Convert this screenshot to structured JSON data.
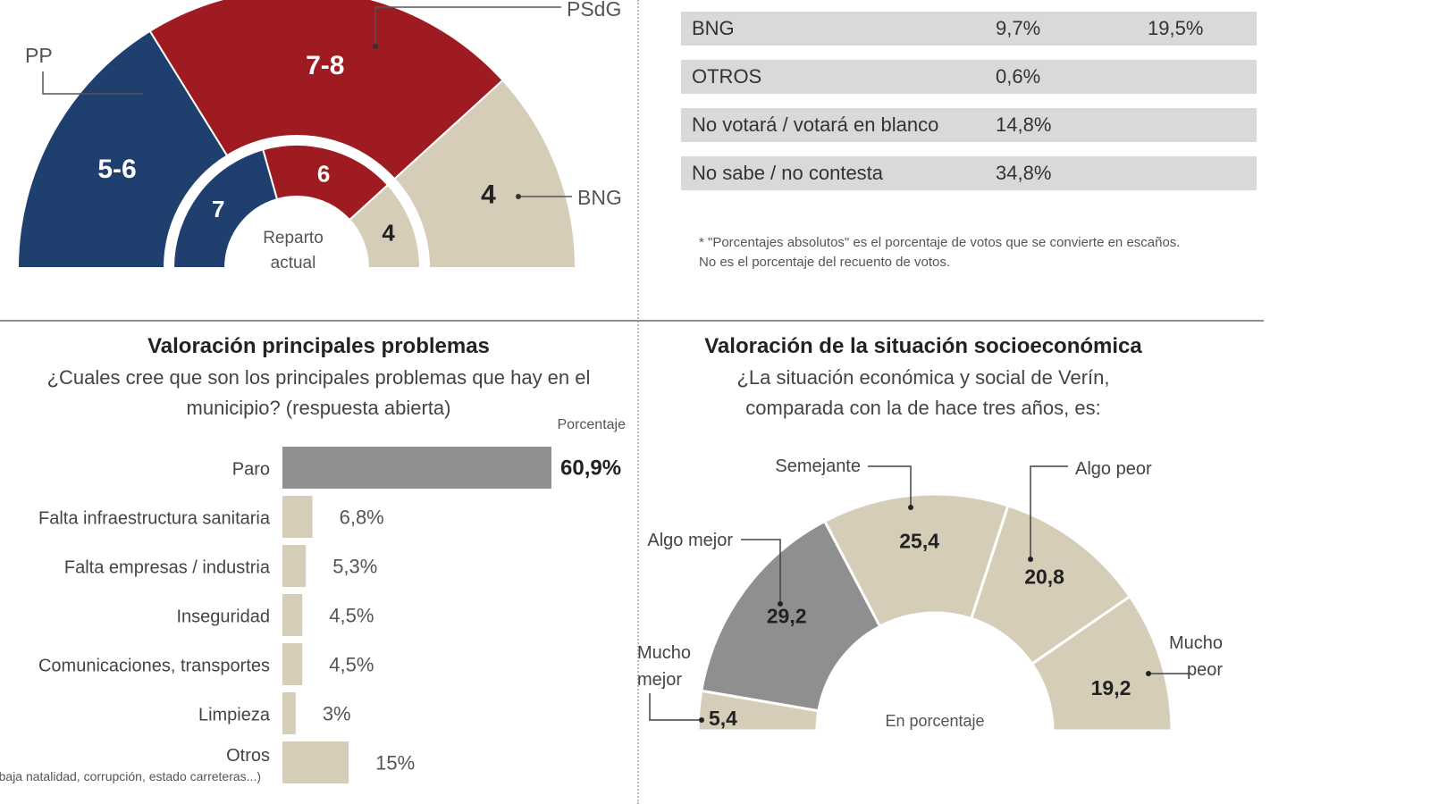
{
  "seats_chart": {
    "center_label_line1": "Reparto",
    "center_label_line2": "actual",
    "outer": [
      {
        "party": "PP",
        "value": "5-6",
        "seats_mid": 5.5,
        "color": "#1f3f6e"
      },
      {
        "party": "PSdG",
        "value": "7-8",
        "seats_mid": 7.5,
        "color": "#9e1b21"
      },
      {
        "party": "BNG",
        "value": "4",
        "seats_mid": 4,
        "color": "#d6cdb8"
      }
    ],
    "inner": [
      {
        "party": "PP",
        "value": "7",
        "seats": 7,
        "color": "#1f3f6e"
      },
      {
        "party": "PSdG",
        "value": "6",
        "seats": 6,
        "color": "#9e1b21"
      },
      {
        "party": "BNG",
        "value": "4",
        "seats": 4,
        "color": "#d6cdb8"
      }
    ]
  },
  "vote_table": {
    "rows": [
      {
        "label": "BNG",
        "value1": "9,7%",
        "value2": "19,5%"
      },
      {
        "label": "OTROS",
        "value1": "0,6%",
        "value2": ""
      },
      {
        "label": "No votará / votará en blanco",
        "value1": "14,8%",
        "value2": ""
      },
      {
        "label": "No sabe / no contesta",
        "value1": "34,8%",
        "value2": ""
      }
    ],
    "note_line1": "* \"Porcentajes absolutos\" es el porcentaje de votos que se convierte en escaños.",
    "note_line2": "No es el porcentaje del recuento de votos."
  },
  "problems": {
    "title": "Valoración principales problemas",
    "question_line1": "¿Cuales cree que son los principales problemas que hay en el",
    "question_line2": "municipio? (respuesta abierta)",
    "column_header": "Porcentaje"
  },
  "socio": {
    "title": "Valoración de la situación socioeconómica",
    "question_line1": "¿La situación económica y social de Verín,",
    "question_line2": "comparada con la de hace tres años, es:",
    "center_label": "En porcentaje"
  },
  "chart_data": [
    {
      "type": "bar",
      "orientation": "horizontal",
      "title": "Valoración principales problemas",
      "categories": [
        "Paro",
        "Falta infraestructura sanitaria",
        "Falta empresas / industria",
        "Inseguridad",
        "Comunicaciones, transportes",
        "Limpieza",
        "Otros"
      ],
      "category_notes": [
        "",
        "",
        "",
        "",
        "",
        "",
        "(baja natalidad, corrupción, estado carreteras...)"
      ],
      "values": [
        60.9,
        6.8,
        5.3,
        4.5,
        4.5,
        3,
        15
      ],
      "value_labels": [
        "60,9%",
        "6,8%",
        "5,3%",
        "4,5%",
        "4,5%",
        "3%",
        "15%"
      ],
      "colors": [
        "#8f8f8f",
        "#d6cdb8",
        "#d6cdb8",
        "#d6cdb8",
        "#d6cdb8",
        "#d6cdb8",
        "#d6cdb8"
      ],
      "xlim": [
        0,
        60.9
      ],
      "grid": false
    },
    {
      "type": "pie",
      "variant": "half-donut",
      "title": "Valoración de la situación socioeconómica",
      "categories": [
        "Mucho mejor",
        "Algo mejor",
        "Semejante",
        "Algo peor",
        "Mucho peor"
      ],
      "values": [
        5.4,
        29.2,
        25.4,
        20.8,
        19.2
      ],
      "value_labels": [
        "5,4",
        "29,2",
        "25,4",
        "20,8",
        "19,2"
      ],
      "colors": [
        "#d6cdb8",
        "#8f8f8f",
        "#d6cdb8",
        "#d6cdb8",
        "#d6cdb8"
      ]
    }
  ]
}
